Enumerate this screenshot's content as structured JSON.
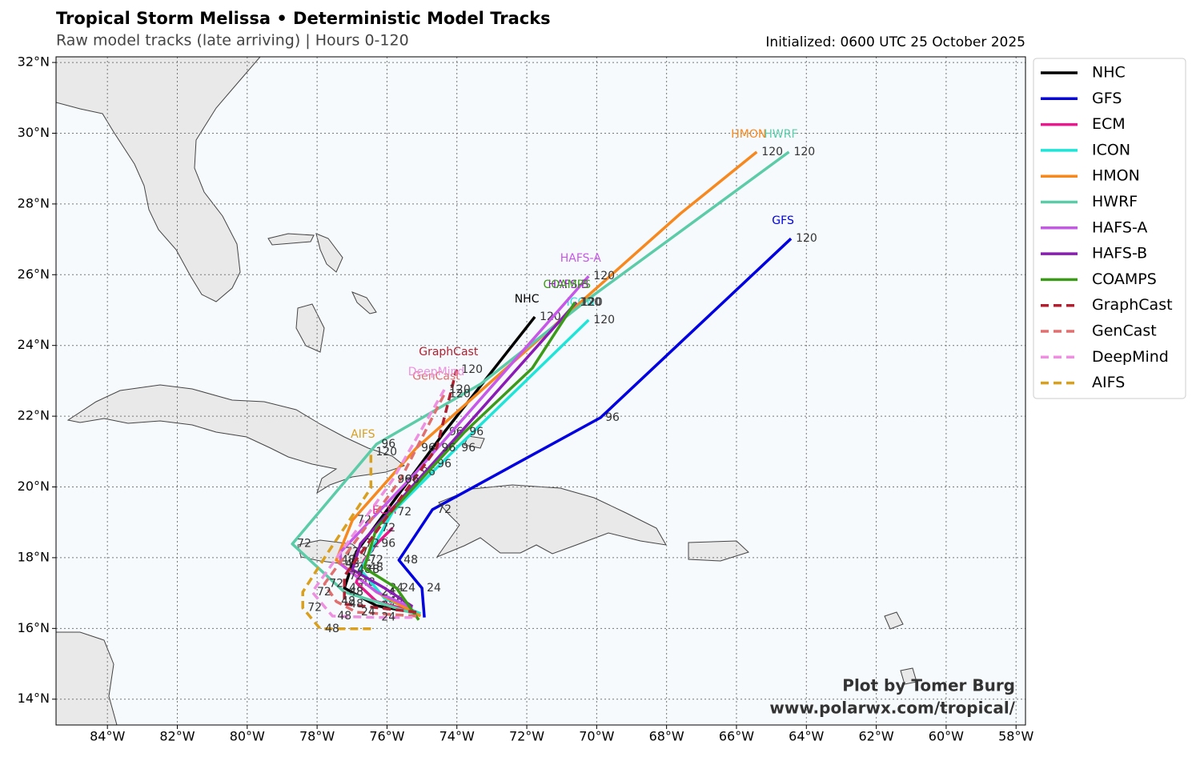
{
  "chart_data": {
    "type": "track-map",
    "title": "Tropical Storm Melissa • Deterministic Model Tracks",
    "subtitle": "Raw model tracks (late arriving) | Hours 0-120",
    "initialized": "Initialized: 0600 UTC 25 October 2025",
    "credit": [
      "Plot by Tomer Burg",
      "www.polarwx.com/tropical/"
    ],
    "xlim": [
      -85.47,
      -57.73
    ],
    "ylim": [
      13.27,
      32.16
    ],
    "grid": true,
    "xticks": [
      {
        "value": -84,
        "label": "84°W"
      },
      {
        "value": -82,
        "label": "82°W"
      },
      {
        "value": -80,
        "label": "80°W"
      },
      {
        "value": -78,
        "label": "78°W"
      },
      {
        "value": -76,
        "label": "76°W"
      },
      {
        "value": -74,
        "label": "74°W"
      },
      {
        "value": -72,
        "label": "72°W"
      },
      {
        "value": -70,
        "label": "70°W"
      },
      {
        "value": -68,
        "label": "68°W"
      },
      {
        "value": -66,
        "label": "66°W"
      },
      {
        "value": -64,
        "label": "64°W"
      },
      {
        "value": -62,
        "label": "62°W"
      },
      {
        "value": -60,
        "label": "60°W"
      },
      {
        "value": -58,
        "label": "58°W"
      }
    ],
    "yticks": [
      {
        "value": 14,
        "label": "14°N"
      },
      {
        "value": 16,
        "label": "16°N"
      },
      {
        "value": 18,
        "label": "18°N"
      },
      {
        "value": 20,
        "label": "20°N"
      },
      {
        "value": 22,
        "label": "22°N"
      },
      {
        "value": 24,
        "label": "24°N"
      },
      {
        "value": 26,
        "label": "26°N"
      },
      {
        "value": 28,
        "label": "28°N"
      },
      {
        "value": 30,
        "label": "30°N"
      },
      {
        "value": 32,
        "label": "32°N"
      }
    ],
    "series": [
      {
        "name": "NHC",
        "color": "#000000",
        "dashed": false,
        "x": [
          -75.04,
          -76.3,
          -77.22,
          -76.88,
          -74.36,
          -71.77
        ],
        "y": [
          16.42,
          16.64,
          17.14,
          18.16,
          21.55,
          24.81
        ],
        "point_labels": [
          null,
          24,
          48,
          72,
          96,
          120
        ]
      },
      {
        "name": "GFS",
        "color": "#0000e0",
        "dashed": false,
        "x": [
          -74.93,
          -75.0,
          -75.66,
          -74.7,
          -69.89,
          -64.44
        ],
        "y": [
          16.31,
          17.14,
          17.93,
          19.36,
          21.96,
          27.02
        ],
        "point_labels": [
          null,
          24,
          48,
          72,
          96,
          120
        ]
      },
      {
        "name": "ECM",
        "color": "#e8198c",
        "dashed": false,
        "x": [
          -75.16,
          -76.3,
          -76.88,
          -76.65,
          -76.3,
          -75.84
        ],
        "y": [
          16.46,
          16.76,
          17.3,
          17.93,
          18.39,
          18.84
        ],
        "point_labels": [
          null,
          24,
          48,
          72,
          96,
          null
        ]
      },
      {
        "name": "ICON",
        "color": "#1ee5d8",
        "dashed": false,
        "x": [
          -75.04,
          -76.07,
          -76.76,
          -75.84,
          -74.01,
          -70.23
        ],
        "y": [
          16.42,
          16.85,
          17.66,
          19.29,
          21.1,
          24.72
        ],
        "point_labels": [
          null,
          24,
          48,
          72,
          96,
          120
        ]
      },
      {
        "name": "HMON",
        "color": "#f7881e",
        "dashed": false,
        "x": [
          -75.04,
          -76.3,
          -77.45,
          -76.99,
          -75.16,
          -67.6,
          -65.42
        ],
        "y": [
          16.35,
          17.03,
          17.93,
          19.06,
          21.1,
          27.73,
          29.47
        ],
        "point_labels": [
          null,
          24,
          48,
          72,
          96,
          null,
          120
        ]
      },
      {
        "name": "HWRF",
        "color": "#5ccba8",
        "dashed": false,
        "x": [
          -75.16,
          -77.22,
          -78.71,
          -76.3,
          -73.32,
          -70.12,
          -64.5
        ],
        "y": [
          16.4,
          17.03,
          18.39,
          21.21,
          22.91,
          25.4,
          29.47
        ],
        "point_labels": [
          null,
          48,
          72,
          96,
          null,
          null,
          120
        ]
      },
      {
        "name": "HAFS-A",
        "color": "#c757e8",
        "dashed": false,
        "x": [
          -75.27,
          -76.3,
          -77.33,
          -77.33,
          -75.16,
          -70.23
        ],
        "y": [
          16.58,
          17.03,
          17.82,
          18.16,
          20.42,
          25.96
        ],
        "point_labels": [
          null,
          24,
          48,
          72,
          96,
          120
        ]
      },
      {
        "name": "HAFS-B",
        "color": "#8b1bb5",
        "dashed": false,
        "x": [
          -75.27,
          -76.07,
          -76.99,
          -76.76,
          -74.7,
          -70.58
        ],
        "y": [
          16.62,
          17.14,
          17.66,
          18.39,
          20.65,
          25.22
        ],
        "point_labels": [
          null,
          24,
          48,
          72,
          96,
          120
        ]
      },
      {
        "name": "COAMPS",
        "color": "#3b9b18",
        "dashed": false,
        "x": [
          -75.09,
          -75.73,
          -76.65,
          -76.3,
          -73.78,
          -71.84,
          -70.62
        ],
        "y": [
          16.24,
          17.14,
          17.71,
          18.84,
          21.55,
          23.36,
          25.22
        ],
        "point_labels": [
          null,
          24,
          48,
          72,
          96,
          null,
          120
        ]
      },
      {
        "name": "GraphCast",
        "color": "#b02030",
        "dashed": true,
        "x": [
          -75.16,
          -77.22,
          -77.22,
          -74.58,
          -74.01
        ],
        "y": [
          16.46,
          16.69,
          17.48,
          21.1,
          23.32
        ],
        "point_labels": [
          null,
          48,
          72,
          96,
          120
        ]
      },
      {
        "name": "GenCast",
        "color": "#e07070",
        "dashed": true,
        "x": [
          -75.16,
          -76.88,
          -77.45,
          -77.79,
          -75.62,
          -74.36
        ],
        "y": [
          16.35,
          16.46,
          16.76,
          17.26,
          20.2,
          22.62
        ],
        "point_labels": [
          null,
          24,
          48,
          72,
          96,
          120
        ]
      },
      {
        "name": "DeepMind",
        "color": "#ee90e0",
        "dashed": true,
        "x": [
          -75.27,
          -76.3,
          -77.56,
          -78.14,
          -75.84,
          -74.36
        ],
        "y": [
          16.31,
          16.31,
          16.35,
          17.03,
          20.2,
          22.75
        ],
        "point_labels": [
          null,
          24,
          48,
          72,
          96,
          120
        ]
      },
      {
        "name": "AIFS",
        "color": "#d9a020",
        "dashed": true,
        "x": [
          -76.46,
          -77.91,
          -78.41,
          -78.41,
          -77.68,
          -76.46,
          -76.46
        ],
        "y": [
          15.99,
          15.99,
          16.58,
          17.03,
          18.16,
          19.97,
          20.99
        ],
        "point_labels": [
          null,
          48,
          72,
          null,
          null,
          null,
          120
        ]
      }
    ]
  }
}
